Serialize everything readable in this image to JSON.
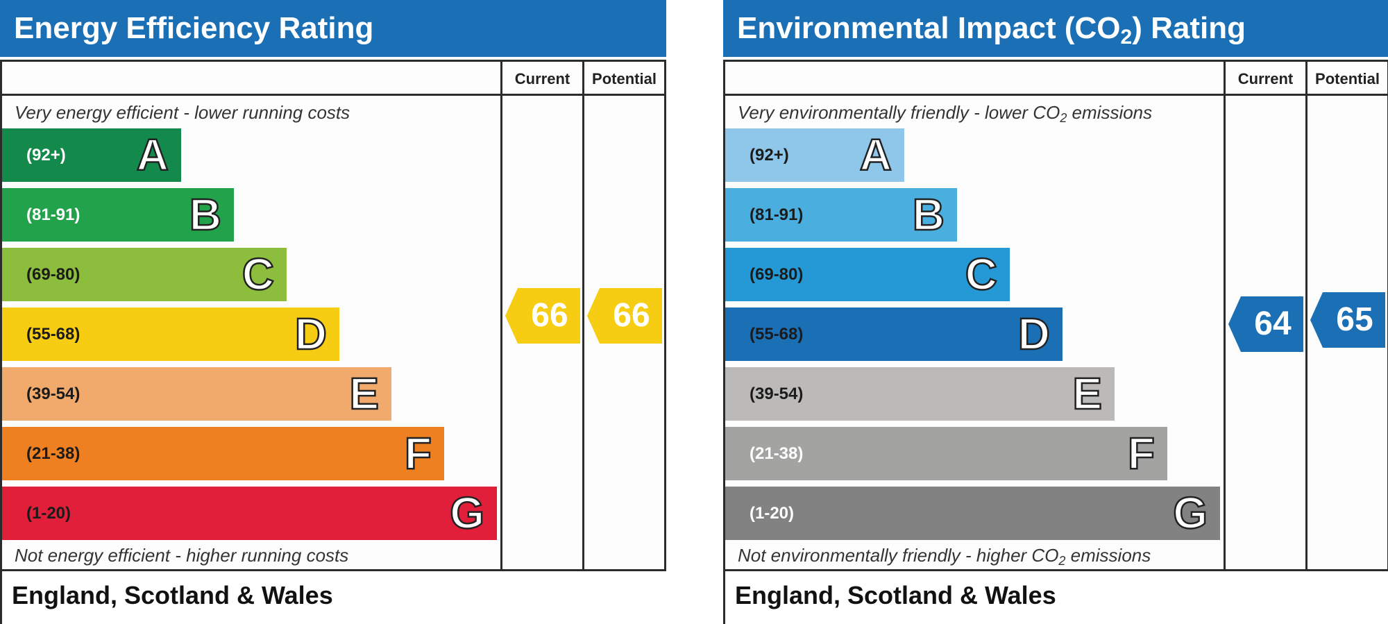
{
  "colors": {
    "title_bar": "#1a6fb5",
    "energy_bands": [
      "#138a4c",
      "#22a24a",
      "#8cbd3c",
      "#f6cd12",
      "#f2a96c",
      "#ee8022",
      "#e21f3a"
    ],
    "env_bands": [
      "#8ec7ea",
      "#4aaedf",
      "#2499d5",
      "#1a6fb5",
      "#bbbab8",
      "#a3a3a1",
      "#828282"
    ],
    "energy_arrow": "#f6cd12",
    "env_arrow": "#1a6fb5"
  },
  "chart_data": [
    {
      "type": "bar",
      "title": "Energy Efficiency Rating",
      "column_headers": {
        "current": "Current",
        "potential": "Potential"
      },
      "top_caption": "Very energy efficient - lower running costs",
      "bottom_caption": "Not energy efficient - higher running costs",
      "footer": "England, Scotland & Wales",
      "bands": [
        {
          "letter": "A",
          "range": "(92+)"
        },
        {
          "letter": "B",
          "range": "(81-91)"
        },
        {
          "letter": "C",
          "range": "(69-80)"
        },
        {
          "letter": "D",
          "range": "(55-68)"
        },
        {
          "letter": "E",
          "range": "(39-54)"
        },
        {
          "letter": "F",
          "range": "(21-38)"
        },
        {
          "letter": "G",
          "range": "(1-20)"
        }
      ],
      "current": 66,
      "potential": 66
    },
    {
      "type": "bar",
      "title_main": "Environmental Impact (CO",
      "title_sub": "2",
      "title_end": ") Rating",
      "column_headers": {
        "current": "Current",
        "potential": "Potential"
      },
      "top_caption_main": "Very environmentally friendly - lower CO",
      "top_caption_sub": "2",
      "top_caption_end": " emissions",
      "bottom_caption_main": "Not environmentally friendly - higher CO",
      "bottom_caption_sub": "2",
      "bottom_caption_end": " emissions",
      "footer": "England, Scotland & Wales",
      "bands": [
        {
          "letter": "A",
          "range": "(92+)"
        },
        {
          "letter": "B",
          "range": "(81-91)"
        },
        {
          "letter": "C",
          "range": "(69-80)"
        },
        {
          "letter": "D",
          "range": "(55-68)"
        },
        {
          "letter": "E",
          "range": "(39-54)"
        },
        {
          "letter": "F",
          "range": "(21-38)"
        },
        {
          "letter": "G",
          "range": "(1-20)"
        }
      ],
      "current": 64,
      "potential": 65
    }
  ]
}
